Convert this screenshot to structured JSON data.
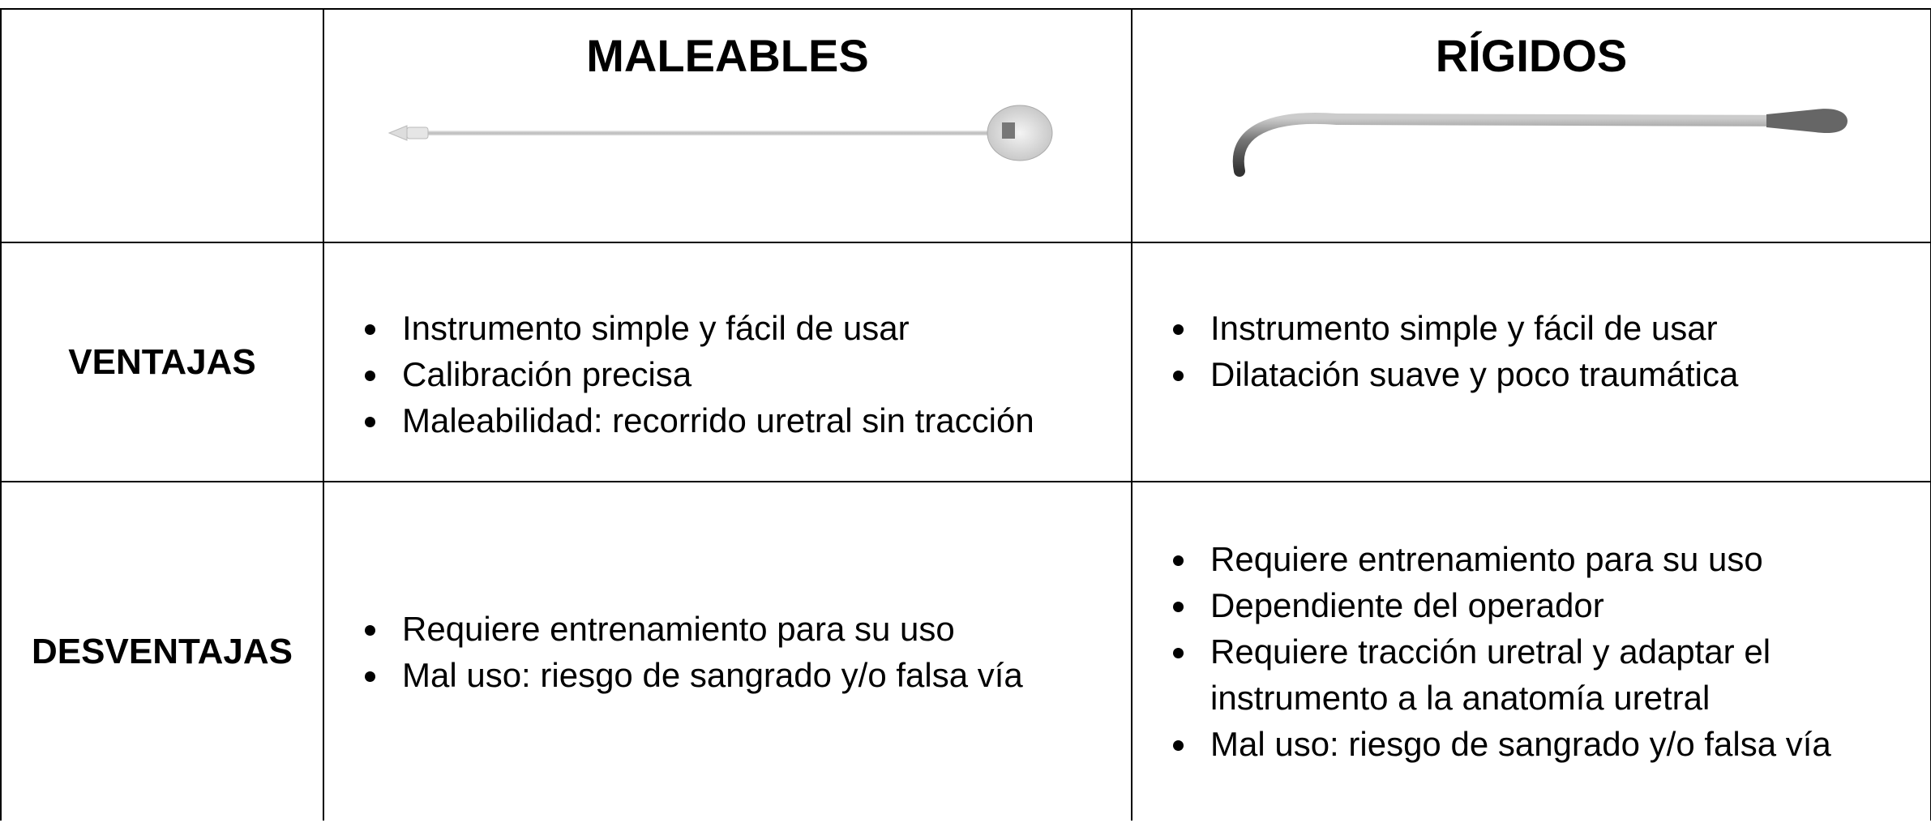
{
  "table": {
    "header": [
      "MALEABLES",
      "RÍGIDOS"
    ],
    "rows": [
      {
        "label": "VENTAJAS",
        "cells": [
          [
            "Instrumento simple y fácil de usar",
            "Calibración precisa",
            "Maleabilidad: recorrido uretral sin tracción"
          ],
          [
            "Instrumento simple y fácil de usar",
            "Dilatación suave y poco traumática"
          ]
        ]
      },
      {
        "label": "DESVENTAJAS",
        "cells": [
          [
            "Requiere entrenamiento para su uso",
            "Mal uso: riesgo de sangrado y/o falsa vía"
          ],
          [
            "Requiere entrenamiento para su uso",
            "Dependiente del operador",
            "Requiere tracción uretral y adaptar el instrumento a la anatomía uretral",
            "Mal uso: riesgo de sangrado y/o falsa vía"
          ]
        ]
      }
    ]
  }
}
